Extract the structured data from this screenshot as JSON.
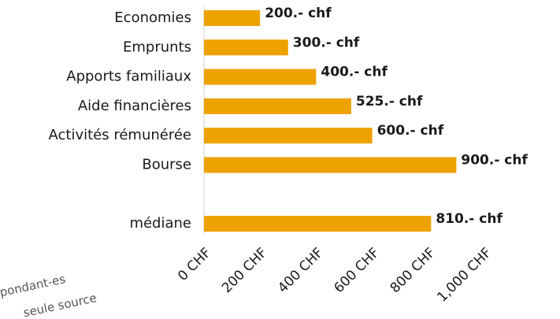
{
  "chart_data": {
    "type": "bar",
    "orientation": "horizontal",
    "categories": [
      "Economies",
      "Emprunts",
      "Apports familiaux",
      "Aide financières",
      "Activités rémunérée",
      "Bourse",
      null,
      "médiane"
    ],
    "values": [
      200,
      300,
      400,
      525,
      600,
      900,
      null,
      810
    ],
    "value_labels": [
      "200.- chf",
      "300.- chf",
      "400.- chf",
      "525.- chf",
      "600.- chf",
      "900.- chf",
      null,
      "810.- chf"
    ],
    "color": "#eea200",
    "xlim": [
      0,
      1000
    ],
    "xticks": [
      {
        "value": 0,
        "label": "0 CHF"
      },
      {
        "value": 200,
        "label": "200 CHF"
      },
      {
        "value": 400,
        "label": "400 CHF"
      },
      {
        "value": 600,
        "label": "600 CHF"
      },
      {
        "value": 800,
        "label": "800 CHF"
      },
      {
        "value": 1000,
        "label": "1,000 CHF"
      }
    ],
    "annotations": [
      "pondant-es",
      "seule source"
    ]
  }
}
